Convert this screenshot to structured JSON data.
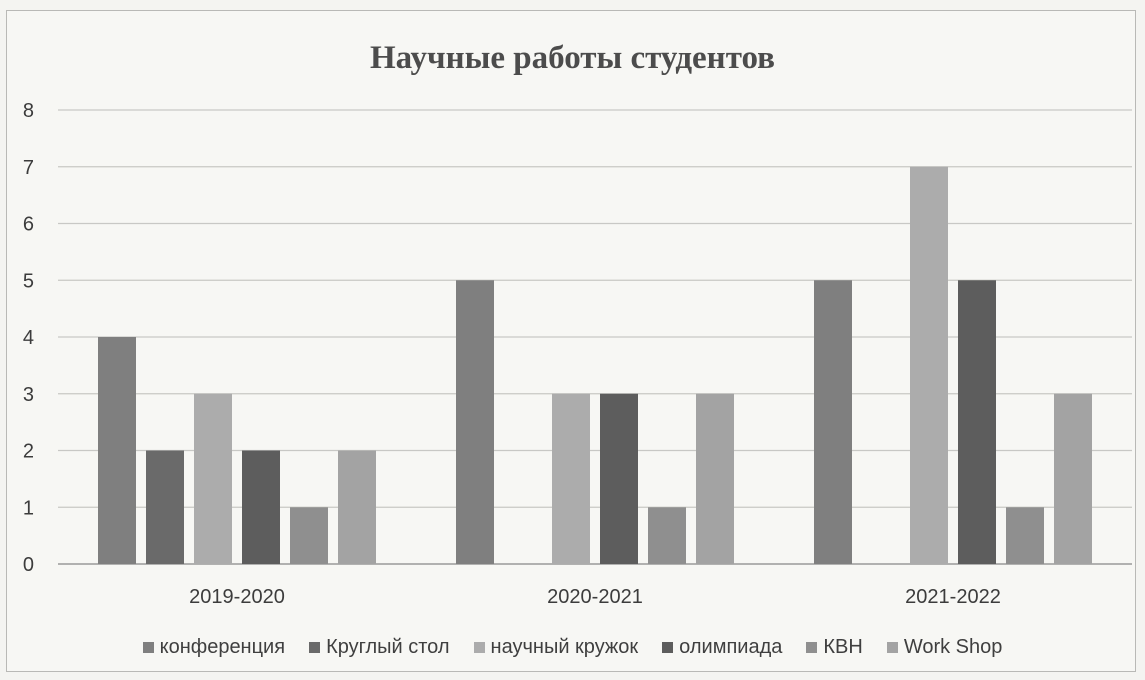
{
  "chart_data": {
    "type": "bar",
    "title": "Научные работы студентов",
    "xlabel": "",
    "ylabel": "",
    "ylim": [
      0,
      8
    ],
    "yticks": [
      0,
      1,
      2,
      3,
      4,
      5,
      6,
      7,
      8
    ],
    "grid": true,
    "legend_position": "bottom",
    "categories": [
      "2019-2020",
      "2020-2021",
      "2021-2022"
    ],
    "series": [
      {
        "name": "конференция",
        "color": "#7f7f7f",
        "values": [
          4,
          5,
          5
        ]
      },
      {
        "name": "Круглый стол",
        "color": "#6a6a6a",
        "values": [
          2,
          0,
          0
        ]
      },
      {
        "name": "научный кружок",
        "color": "#acacac",
        "values": [
          3,
          3,
          7
        ]
      },
      {
        "name": "олимпиада",
        "color": "#5d5d5d",
        "values": [
          2,
          3,
          5
        ]
      },
      {
        "name": "КВН",
        "color": "#8f8f8f",
        "values": [
          1,
          1,
          1
        ]
      },
      {
        "name": "Work Shop",
        "color": "#a3a3a3",
        "values": [
          2,
          3,
          3
        ]
      }
    ]
  }
}
